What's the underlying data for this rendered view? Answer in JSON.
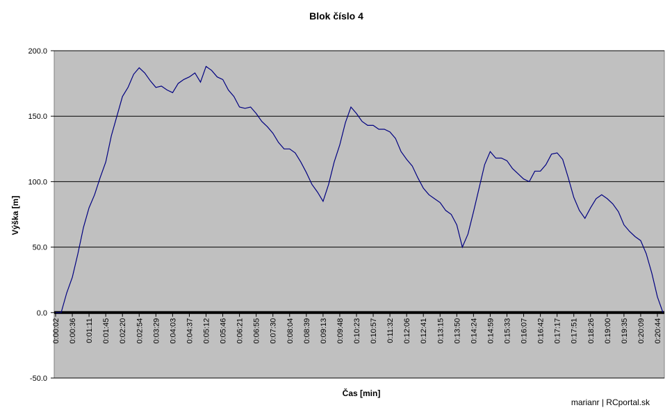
{
  "chart_data": {
    "type": "line",
    "title": "Blok číslo 4",
    "x_label": "Čas [min]",
    "y_label": "Výška [m]",
    "footer": "marianr | RCportal.sk",
    "categories": [
      "0:00:02",
      null,
      null,
      "0:00:36",
      null,
      null,
      "0:01:11",
      null,
      null,
      "0:01:45",
      null,
      null,
      "0:02:20",
      null,
      null,
      "0:02:54",
      null,
      null,
      "0:03:29",
      null,
      null,
      "0:04:03",
      null,
      null,
      "0:04:37",
      null,
      null,
      "0:05:12",
      null,
      null,
      "0:05:46",
      null,
      null,
      "0:06:21",
      null,
      null,
      "0:06:55",
      null,
      null,
      "0:07:30",
      null,
      null,
      "0:08:04",
      null,
      null,
      "0:08:39",
      null,
      null,
      "0:09:13",
      null,
      null,
      "0:09:48",
      null,
      null,
      "0:10:23",
      null,
      null,
      "0:10:57",
      null,
      null,
      "0:11:32",
      null,
      null,
      "0:12:06",
      null,
      null,
      "0:12:41",
      null,
      null,
      "0:13:15",
      null,
      null,
      "0:13:50",
      null,
      null,
      "0:14:24",
      null,
      null,
      "0:14:59",
      null,
      null,
      "0:15:33",
      null,
      null,
      "0:16:07",
      null,
      null,
      "0:16:42",
      null,
      null,
      "0:17:17",
      null,
      null,
      "0:17:51",
      null,
      null,
      "0:18:26",
      null,
      null,
      "0:19:00",
      null,
      null,
      "0:19:35",
      null,
      null,
      "0:20:09",
      null,
      null,
      "0:20:44",
      null
    ],
    "values": [
      0,
      0,
      15,
      27,
      45,
      65,
      80,
      90,
      103,
      115,
      135,
      150,
      165,
      172,
      182,
      187,
      183,
      177,
      172,
      173,
      170,
      168,
      175,
      178,
      180,
      183,
      176,
      188,
      185,
      180,
      178,
      170,
      165,
      157,
      156,
      157,
      152,
      146,
      142,
      137,
      130,
      125,
      125,
      122,
      115,
      107,
      98,
      92,
      85,
      98,
      115,
      128,
      145,
      157,
      152,
      146,
      143,
      143,
      140,
      140,
      138,
      133,
      123,
      117,
      112,
      103,
      95,
      90,
      87,
      84,
      78,
      75,
      67,
      50,
      60,
      77,
      95,
      113,
      123,
      118,
      118,
      116,
      110,
      106,
      102,
      100,
      108,
      108,
      113,
      121,
      122,
      117,
      103,
      88,
      78,
      72,
      80,
      87,
      90,
      87,
      83,
      77,
      67,
      62,
      58,
      55,
      45,
      30,
      12,
      0
    ],
    "color": "#000080",
    "background": "#c0c0c0",
    "ylim": [
      -50,
      200
    ],
    "yticks": [
      {
        "value": -50,
        "label": "-50.0"
      },
      {
        "value": 0,
        "label": "0.0"
      },
      {
        "value": 50,
        "label": "50.0"
      },
      {
        "value": 100,
        "label": "100.0"
      },
      {
        "value": 150,
        "label": "150.0"
      },
      {
        "value": 200,
        "label": "200.0"
      }
    ],
    "grid": true
  }
}
